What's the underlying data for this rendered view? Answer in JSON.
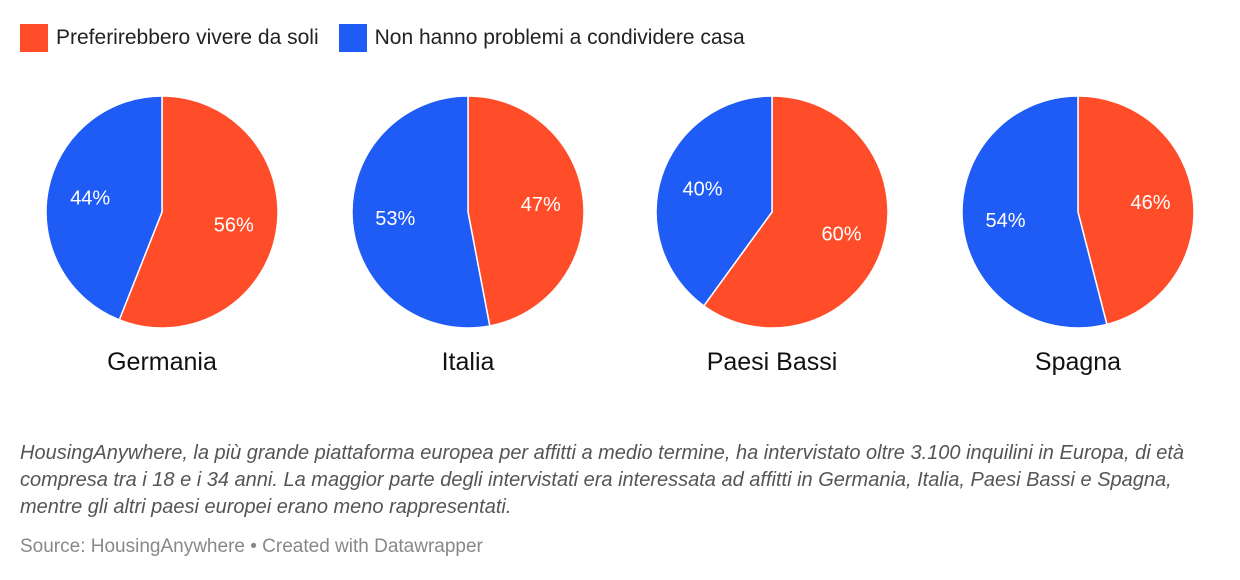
{
  "chart_data": {
    "type": "pie",
    "legend": [
      {
        "label": "Preferirebbero vivere da soli",
        "color": "#ff4d2a"
      },
      {
        "label": "Non hanno problemi a condividere casa",
        "color": "#1f5cf5"
      }
    ],
    "charts": [
      {
        "title": "Germania",
        "slices": [
          {
            "series": "Preferirebbero vivere da soli",
            "value": 56,
            "label": "56%"
          },
          {
            "series": "Non hanno problemi a condividere casa",
            "value": 44,
            "label": "44%"
          }
        ]
      },
      {
        "title": "Italia",
        "slices": [
          {
            "series": "Preferirebbero vivere da soli",
            "value": 47,
            "label": "47%"
          },
          {
            "series": "Non hanno problemi a condividere casa",
            "value": 53,
            "label": "53%"
          }
        ]
      },
      {
        "title": "Paesi Bassi",
        "slices": [
          {
            "series": "Preferirebbero vivere da soli",
            "value": 60,
            "label": "60%"
          },
          {
            "series": "Non hanno problemi a condividere casa",
            "value": 40,
            "label": "40%"
          }
        ]
      },
      {
        "title": "Spagna",
        "slices": [
          {
            "series": "Preferirebbero vivere da soli",
            "value": 46,
            "label": "46%"
          },
          {
            "series": "Non hanno problemi a condividere casa",
            "value": 54,
            "label": "54%"
          }
        ]
      }
    ]
  },
  "notes": "HousingAnywhere, la più grande piattaforma europea per affitti a medio termine, ha intervistato oltre 3.100 inquilini in Europa, di età compresa tra i 18 e i 34 anni. La maggior parte degli intervistati era interessata ad affitti in Germania, Italia, Paesi Bassi e Spagna, mentre gli altri paesi europei erano meno rappresentati.",
  "source": "Source: HousingAnywhere • Created with Datawrapper"
}
